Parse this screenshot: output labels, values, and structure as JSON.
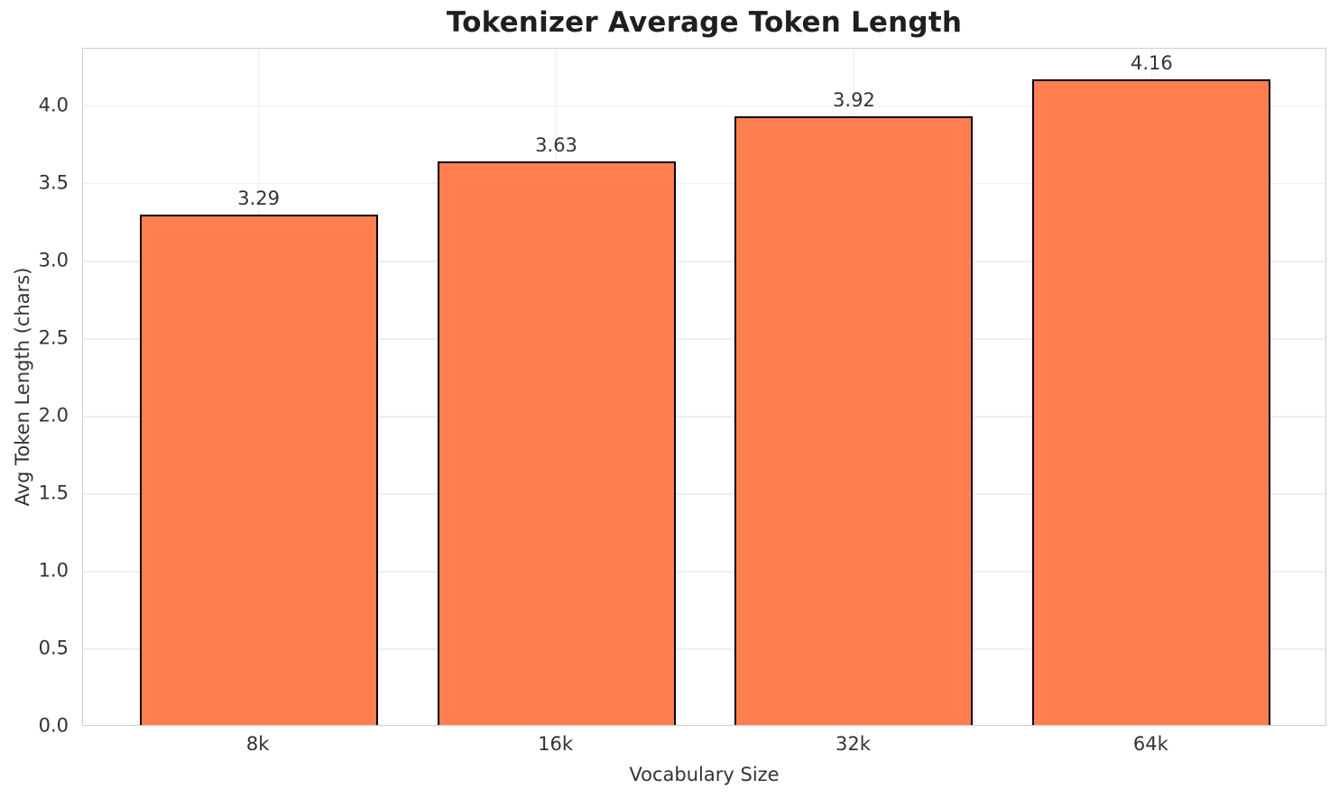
{
  "chart_data": {
    "type": "bar",
    "title": "Tokenizer Average Token Length",
    "xlabel": "Vocabulary Size",
    "ylabel": "Avg Token Length (chars)",
    "categories": [
      "8k",
      "16k",
      "32k",
      "64k"
    ],
    "values": [
      3.29,
      3.63,
      3.92,
      4.16
    ],
    "bar_value_labels": [
      "3.29",
      "3.63",
      "3.92",
      "4.16"
    ],
    "yticks": [
      0.0,
      0.5,
      1.0,
      1.5,
      2.0,
      2.5,
      3.0,
      3.5,
      4.0
    ],
    "ytick_labels": [
      "0.0",
      "0.5",
      "1.0",
      "1.5",
      "2.0",
      "2.5",
      "3.0",
      "3.5",
      "4.0"
    ],
    "ylim": [
      0,
      4.37
    ],
    "xlim": [
      -0.59,
      3.59
    ],
    "bar_width": 0.8,
    "grid": true,
    "colors": {
      "bar_fill": "#FF7F50",
      "bar_edge": "#000000",
      "grid_line": "#eeeeee",
      "spine": "#cfcfcf",
      "title_text": "#1f1f1f",
      "text": "#333333",
      "background": "#ffffff"
    }
  }
}
